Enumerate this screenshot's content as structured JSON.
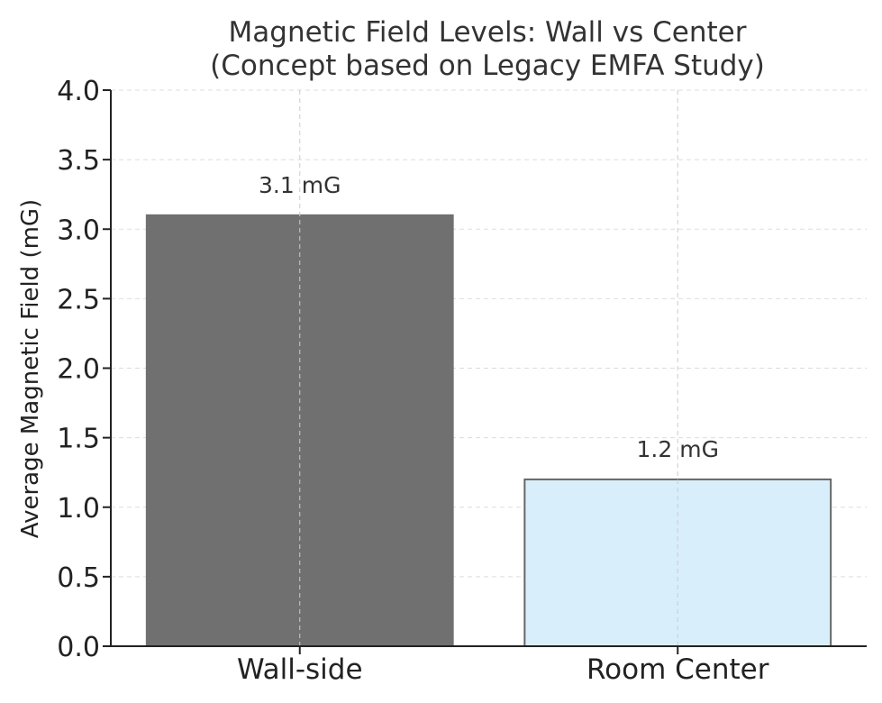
{
  "chart_data": {
    "type": "bar",
    "title_line1": "Magnetic Field Levels: Wall vs Center",
    "title_line2": "(Concept based on Legacy EMFA Study)",
    "xlabel": "",
    "ylabel": "Average Magnetic Field (mG)",
    "categories": [
      "Wall-side",
      "Room Center"
    ],
    "values": [
      3.1,
      1.2
    ],
    "data_labels": [
      "3.1 mG",
      "1.2 mG"
    ],
    "bar_colors": [
      "#707070",
      "#d9eefb"
    ],
    "bar_edge_colors": [
      "#707070",
      "#666666"
    ],
    "ylim": [
      0,
      4.0
    ],
    "yticks": [
      0.0,
      0.5,
      1.0,
      1.5,
      2.0,
      2.5,
      3.0,
      3.5,
      4.0
    ],
    "ytick_labels": [
      "0.0",
      "0.5",
      "1.0",
      "1.5",
      "2.0",
      "2.5",
      "3.0",
      "3.5",
      "4.0"
    ],
    "grid": true
  }
}
